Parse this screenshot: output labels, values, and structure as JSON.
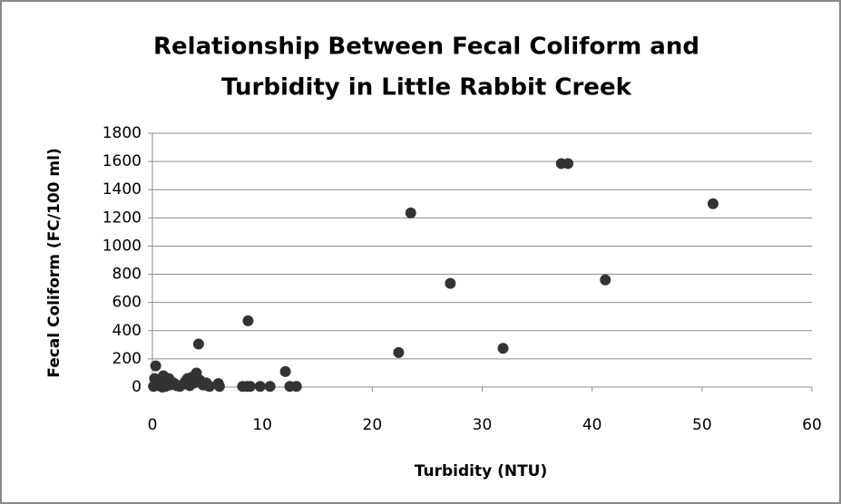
{
  "chart_data": {
    "type": "scatter",
    "title": [
      "Relationship Between Fecal Coliform and",
      "Turbidity in Little Rabbit Creek"
    ],
    "x_label": "Turbidity (NTU)",
    "y_label": "Fecal Coliform (FC/100 ml)",
    "color": "#333333",
    "grid": true,
    "xlim": [
      0,
      60
    ],
    "xticks": [
      0,
      10,
      20,
      30,
      40,
      50,
      60
    ],
    "ylim": [
      0,
      1800
    ],
    "yticks": [
      0,
      200,
      400,
      600,
      800,
      1000,
      1200,
      1400,
      1600,
      1800
    ],
    "x": [
      37.2,
      37.8,
      23.5,
      51,
      27.1,
      41.2,
      8.7,
      31.9,
      22.4,
      4.2,
      12.1,
      0.3,
      4.0,
      0.2,
      0.4,
      0.5,
      0.6,
      0.8,
      1.0,
      1.2,
      1.4,
      1.6,
      1.9,
      2.2,
      2.5,
      2.8,
      3.0,
      3.2,
      3.4,
      3.6,
      3.8,
      4.3,
      4.6,
      4.9,
      5.2,
      5.0,
      6.0,
      6.1,
      8.2,
      8.6,
      8.9,
      9.8,
      10.7,
      12.5,
      13.1,
      0.1,
      0.9,
      2.0,
      1.5
    ],
    "values": [
      1585,
      1585,
      1235,
      1300,
      735,
      760,
      470,
      275,
      245,
      305,
      110,
      150,
      100,
      60,
      30,
      10,
      50,
      20,
      80,
      5,
      40,
      15,
      30,
      10,
      5,
      20,
      40,
      60,
      10,
      70,
      30,
      50,
      15,
      30,
      5,
      10,
      25,
      5,
      5,
      5,
      5,
      5,
      5,
      5,
      5,
      5,
      0,
      25,
      60
    ]
  }
}
